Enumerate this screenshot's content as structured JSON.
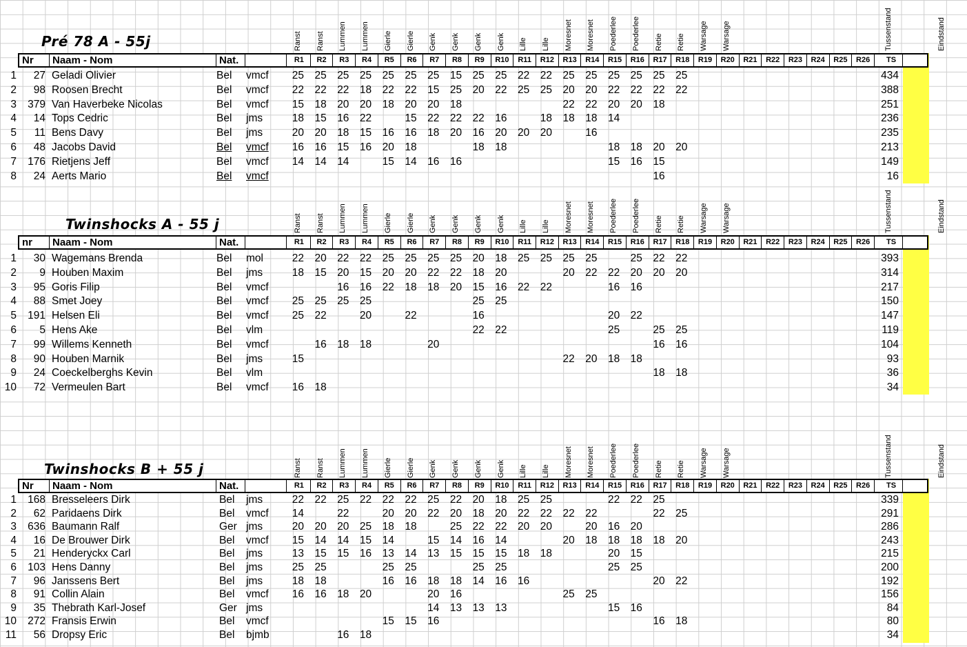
{
  "colors": {
    "highlight": "#ffff44",
    "grid": "#cfcfcf"
  },
  "venues": [
    "Ranst",
    "Ranst",
    "Lummen",
    "Lummen",
    "Gierle",
    "Gierle",
    "Genk",
    "Genk",
    "Genk",
    "Genk",
    "Lille",
    "Lille",
    "Moresnet",
    "Moresnet",
    "Poederlee",
    "Poederlee",
    "Retie",
    "Retie",
    "Warsage",
    "Warsage",
    "",
    "",
    "",
    "",
    "",
    ""
  ],
  "col_tussenstand": "Tussenstand",
  "col_eindstand": "Eindstand",
  "rounds": [
    "R1",
    "R2",
    "R3",
    "R4",
    "R5",
    "R6",
    "R7",
    "R8",
    "R9",
    "R10",
    "R11",
    "R12",
    "R13",
    "R14",
    "R15",
    "R16",
    "R17",
    "R18",
    "R19",
    "R20",
    "R21",
    "R22",
    "R23",
    "R24",
    "R25",
    "R26"
  ],
  "ts_label": "TS",
  "sections": [
    {
      "title": "Pré 78  A   - 55j",
      "header": {
        "nr": "Nr",
        "name": "Naam - Nom",
        "nat": "Nat."
      },
      "rows": [
        {
          "pos": "1",
          "nr": "27",
          "name": "Geladi  Olivier",
          "nat": "Bel",
          "club": "vmcf",
          "scores": [
            "25",
            "25",
            "25",
            "25",
            "25",
            "25",
            "25",
            "15",
            "25",
            "25",
            "22",
            "22",
            "25",
            "25",
            "25",
            "25",
            "25",
            "25",
            "",
            "",
            "",
            "",
            "",
            "",
            "",
            ""
          ],
          "ts": "434"
        },
        {
          "pos": "2",
          "nr": "98",
          "name": "Roosen Brecht",
          "nat": "Bel",
          "club": "vmcf",
          "scores": [
            "22",
            "22",
            "22",
            "18",
            "22",
            "22",
            "15",
            "25",
            "20",
            "22",
            "25",
            "25",
            "20",
            "20",
            "22",
            "22",
            "22",
            "22",
            "",
            "",
            "",
            "",
            "",
            "",
            "",
            ""
          ],
          "ts": "388"
        },
        {
          "pos": "3",
          "nr": "379",
          "name": "Van Haverbeke Nicolas",
          "nat": "Bel",
          "club": "vmcf",
          "scores": [
            "15",
            "18",
            "20",
            "20",
            "18",
            "20",
            "20",
            "18",
            "",
            "",
            "",
            "",
            "22",
            "22",
            "20",
            "20",
            "18",
            "",
            "",
            "",
            "",
            "",
            "",
            "",
            "",
            ""
          ],
          "ts": "251"
        },
        {
          "pos": "4",
          "nr": "14",
          "name": "Tops Cedric",
          "nat": "Bel",
          "club": "jms",
          "scores": [
            "18",
            "15",
            "16",
            "22",
            "",
            "15",
            "22",
            "22",
            "22",
            "16",
            "",
            "18",
            "18",
            "18",
            "14",
            "",
            "",
            "",
            "",
            "",
            "",
            "",
            "",
            "",
            "",
            ""
          ],
          "ts": "236"
        },
        {
          "pos": "5",
          "nr": "11",
          "name": "Bens  Davy",
          "nat": "Bel",
          "club": "jms",
          "scores": [
            "20",
            "20",
            "18",
            "15",
            "16",
            "16",
            "18",
            "20",
            "16",
            "20",
            "20",
            "20",
            "",
            "16",
            "",
            "",
            "",
            "",
            "",
            "",
            "",
            "",
            "",
            "",
            "",
            ""
          ],
          "ts": "235"
        },
        {
          "pos": "6",
          "nr": "48",
          "name": "Jacobs David",
          "nat": "Bel",
          "club": "vmcf",
          "scores": [
            "16",
            "16",
            "15",
            "16",
            "20",
            "18",
            "",
            "",
            "18",
            "18",
            "",
            "",
            "",
            "",
            "18",
            "18",
            "20",
            "20",
            "",
            "",
            "",
            "",
            "",
            "",
            "",
            ""
          ],
          "ts": "213",
          "ul": true
        },
        {
          "pos": "7",
          "nr": "176",
          "name": "Rietjens Jeff",
          "nat": "Bel",
          "club": "vmcf",
          "scores": [
            "14",
            "14",
            "14",
            "",
            "15",
            "14",
            "16",
            "16",
            "",
            "",
            "",
            "",
            "",
            "",
            "15",
            "16",
            "15",
            "",
            "",
            "",
            "",
            "",
            "",
            "",
            "",
            ""
          ],
          "ts": "149"
        },
        {
          "pos": "8",
          "nr": "24",
          "name": "Aerts Mario",
          "nat": "Bel",
          "club": "vmcf",
          "scores": [
            "",
            "",
            "",
            "",
            "",
            "",
            "",
            "",
            "",
            "",
            "",
            "",
            "",
            "",
            "",
            "",
            "16",
            "",
            "",
            "",
            "",
            "",
            "",
            "",
            "",
            ""
          ],
          "ts": "16",
          "ul": true
        }
      ]
    },
    {
      "title": "Twinshocks A - 55 j",
      "header": {
        "nr": "nr",
        "name": "Naam - Nom",
        "nat": "Nat."
      },
      "rows": [
        {
          "pos": "1",
          "nr": "30",
          "name": "Wagemans Brenda",
          "nat": "Bel",
          "club": "mol",
          "scores": [
            "22",
            "20",
            "22",
            "22",
            "25",
            "25",
            "25",
            "25",
            "20",
            "18",
            "25",
            "25",
            "25",
            "25",
            "",
            "25",
            "22",
            "22",
            "",
            "",
            "",
            "",
            "",
            "",
            "",
            ""
          ],
          "ts": "393"
        },
        {
          "pos": "2",
          "nr": "9",
          "name": "Houben Maxim",
          "nat": "Bel",
          "club": "jms",
          "scores": [
            "18",
            "15",
            "20",
            "15",
            "20",
            "20",
            "22",
            "22",
            "18",
            "20",
            "",
            "",
            "20",
            "22",
            "22",
            "20",
            "20",
            "20",
            "",
            "",
            "",
            "",
            "",
            "",
            "",
            ""
          ],
          "ts": "314"
        },
        {
          "pos": "3",
          "nr": "95",
          "name": "Goris Filip",
          "nat": "Bel",
          "club": "vmcf",
          "scores": [
            "",
            "",
            "16",
            "16",
            "22",
            "18",
            "18",
            "20",
            "15",
            "16",
            "22",
            "22",
            "",
            "",
            "16",
            "16",
            "",
            "",
            "",
            "",
            "",
            "",
            "",
            "",
            "",
            ""
          ],
          "ts": "217"
        },
        {
          "pos": "4",
          "nr": "88",
          "name": "Smet Joey",
          "nat": "Bel",
          "club": "vmcf",
          "scores": [
            "25",
            "25",
            "25",
            "25",
            "",
            "",
            "",
            "",
            "25",
            "25",
            "",
            "",
            "",
            "",
            "",
            "",
            "",
            "",
            "",
            "",
            "",
            "",
            "",
            "",
            "",
            ""
          ],
          "ts": "150"
        },
        {
          "pos": "5",
          "nr": "191",
          "name": "Helsen Eli",
          "nat": "Bel",
          "club": "vmcf",
          "scores": [
            "25",
            "22",
            "",
            "20",
            "",
            "22",
            "",
            "",
            "16",
            "",
            "",
            "",
            "",
            "",
            "20",
            "22",
            "",
            "",
            "",
            "",
            "",
            "",
            "",
            "",
            "",
            ""
          ],
          "ts": "147"
        },
        {
          "pos": "6",
          "nr": "5",
          "name": "Hens Ake",
          "nat": "Bel",
          "club": "vlm",
          "scores": [
            "",
            "",
            "",
            "",
            "",
            "",
            "",
            "",
            "22",
            "22",
            "",
            "",
            "",
            "",
            "25",
            "",
            "25",
            "25",
            "",
            "",
            "",
            "",
            "",
            "",
            "",
            ""
          ],
          "ts": "119"
        },
        {
          "pos": "7",
          "nr": "99",
          "name": "Willems Kenneth",
          "nat": "Bel",
          "club": "vmcf",
          "scores": [
            "",
            "16",
            "18",
            "18",
            "",
            "",
            "20",
            "",
            "",
            "",
            "",
            "",
            "",
            "",
            "",
            "",
            "16",
            "16",
            "",
            "",
            "",
            "",
            "",
            "",
            "",
            ""
          ],
          "ts": "104"
        },
        {
          "pos": "8",
          "nr": "90",
          "name": "Houben Marnik",
          "nat": "Bel",
          "club": "jms",
          "scores": [
            "15",
            "",
            "",
            "",
            "",
            "",
            "",
            "",
            "",
            "",
            "",
            "",
            "22",
            "20",
            "18",
            "18",
            "",
            "",
            "",
            "",
            "",
            "",
            "",
            "",
            "",
            ""
          ],
          "ts": "93"
        },
        {
          "pos": "9",
          "nr": "24",
          "name": "Coeckelberghs Kevin",
          "nat": "Bel",
          "club": "vlm",
          "scores": [
            "",
            "",
            "",
            "",
            "",
            "",
            "",
            "",
            "",
            "",
            "",
            "",
            "",
            "",
            "",
            "",
            "18",
            "18",
            "",
            "",
            "",
            "",
            "",
            "",
            "",
            ""
          ],
          "ts": "36"
        },
        {
          "pos": "10",
          "nr": "72",
          "name": "Vermeulen  Bart",
          "nat": "Bel",
          "club": "vmcf",
          "scores": [
            "16",
            "18",
            "",
            "",
            "",
            "",
            "",
            "",
            "",
            "",
            "",
            "",
            "",
            "",
            "",
            "",
            "",
            "",
            "",
            "",
            "",
            "",
            "",
            "",
            "",
            ""
          ],
          "ts": "34"
        }
      ]
    },
    {
      "title": "Twinshocks B  + 55 j",
      "header": {
        "nr": "Nr",
        "name": "Naam - Nom",
        "nat": "Nat."
      },
      "rows": [
        {
          "pos": "1",
          "nr": "168",
          "name": "Bresseleers  Dirk",
          "nat": "Bel",
          "club": "jms",
          "scores": [
            "22",
            "22",
            "25",
            "22",
            "22",
            "22",
            "25",
            "22",
            "20",
            "18",
            "25",
            "25",
            "",
            "",
            "22",
            "22",
            "25",
            "",
            "",
            "",
            "",
            "",
            "",
            "",
            "",
            ""
          ],
          "ts": "339"
        },
        {
          "pos": "2",
          "nr": "62",
          "name": "Paridaens Dirk",
          "nat": "Bel",
          "club": "vmcf",
          "scores": [
            "14",
            "",
            "22",
            "",
            "20",
            "20",
            "22",
            "20",
            "18",
            "20",
            "22",
            "22",
            "22",
            "22",
            "",
            "",
            "22",
            "25",
            "",
            "",
            "",
            "",
            "",
            "",
            "",
            ""
          ],
          "ts": "291"
        },
        {
          "pos": "3",
          "nr": "636",
          "name": "Baumann Ralf",
          "nat": "Ger",
          "club": "jms",
          "scores": [
            "20",
            "20",
            "20",
            "25",
            "18",
            "18",
            "",
            "25",
            "22",
            "22",
            "20",
            "20",
            "",
            "20",
            "16",
            "20",
            "",
            "",
            "",
            "",
            "",
            "",
            "",
            "",
            "",
            ""
          ],
          "ts": "286"
        },
        {
          "pos": "4",
          "nr": "16",
          "name": "De Brouwer Dirk",
          "nat": "Bel",
          "club": "vmcf",
          "scores": [
            "15",
            "14",
            "14",
            "15",
            "14",
            "",
            "15",
            "14",
            "16",
            "14",
            "",
            "",
            "20",
            "18",
            "18",
            "18",
            "18",
            "20",
            "",
            "",
            "",
            "",
            "",
            "",
            "",
            ""
          ],
          "ts": "243"
        },
        {
          "pos": "5",
          "nr": "21",
          "name": "Henderyckx  Carl",
          "nat": "Bel",
          "club": "jms",
          "scores": [
            "13",
            "15",
            "15",
            "16",
            "13",
            "14",
            "13",
            "15",
            "15",
            "15",
            "18",
            "18",
            "",
            "",
            "20",
            "15",
            "",
            "",
            "",
            "",
            "",
            "",
            "",
            "",
            "",
            ""
          ],
          "ts": "215"
        },
        {
          "pos": "6",
          "nr": "103",
          "name": "Hens Danny",
          "nat": "Bel",
          "club": "jms",
          "scores": [
            "25",
            "25",
            "",
            "",
            "25",
            "25",
            "",
            "",
            "25",
            "25",
            "",
            "",
            "",
            "",
            "25",
            "25",
            "",
            "",
            "",
            "",
            "",
            "",
            "",
            "",
            "",
            ""
          ],
          "ts": "200"
        },
        {
          "pos": "7",
          "nr": "96",
          "name": "Janssens Bert",
          "nat": "Bel",
          "club": "jms",
          "scores": [
            "18",
            "18",
            "",
            "",
            "16",
            "16",
            "18",
            "18",
            "14",
            "16",
            "16",
            "",
            "",
            "",
            "",
            "",
            "20",
            "22",
            "",
            "",
            "",
            "",
            "",
            "",
            "",
            ""
          ],
          "ts": "192"
        },
        {
          "pos": "8",
          "nr": "91",
          "name": "Collin Alain",
          "nat": "Bel",
          "club": "vmcf",
          "scores": [
            "16",
            "16",
            "18",
            "20",
            "",
            "",
            "20",
            "16",
            "",
            "",
            "",
            "",
            "25",
            "25",
            "",
            "",
            "",
            "",
            "",
            "",
            "",
            "",
            "",
            "",
            "",
            ""
          ],
          "ts": "156"
        },
        {
          "pos": "9",
          "nr": "35",
          "name": "Thebrath Karl-Josef",
          "nat": "Ger",
          "club": "jms",
          "scores": [
            "",
            "",
            "",
            "",
            "",
            "",
            "14",
            "13",
            "13",
            "13",
            "",
            "",
            "",
            "",
            "15",
            "16",
            "",
            "",
            "",
            "",
            "",
            "",
            "",
            "",
            "",
            ""
          ],
          "ts": "84"
        },
        {
          "pos": "10",
          "nr": "272",
          "name": "Fransis Erwin",
          "nat": "Bel",
          "club": "vmcf",
          "scores": [
            "",
            "",
            "",
            "",
            "15",
            "15",
            "16",
            "",
            "",
            "",
            "",
            "",
            "",
            "",
            "",
            "",
            "16",
            "18",
            "",
            "",
            "",
            "",
            "",
            "",
            "",
            ""
          ],
          "ts": "80"
        },
        {
          "pos": "11",
          "nr": "56",
          "name": "Dropsy Eric",
          "nat": "Bel",
          "club": "bjmb",
          "scores": [
            "",
            "",
            "16",
            "18",
            "",
            "",
            "",
            "",
            "",
            "",
            "",
            "",
            "",
            "",
            "",
            "",
            "",
            "",
            "",
            "",
            "",
            "",
            "",
            "",
            "",
            ""
          ],
          "ts": "34"
        }
      ]
    }
  ]
}
